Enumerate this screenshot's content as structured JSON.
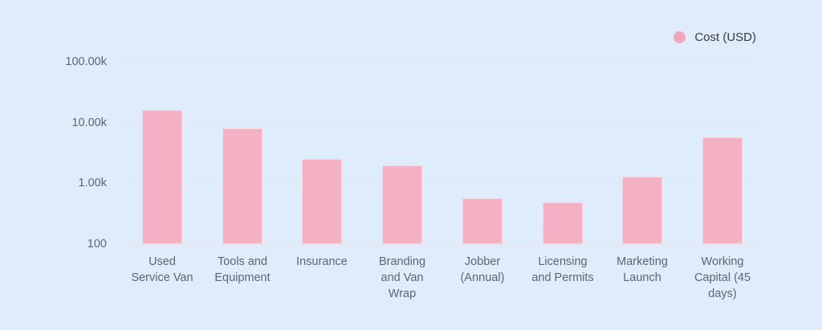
{
  "colors": {
    "background": "#dfecfb",
    "bar_fill": "#f4b1c3",
    "legend_dot": "#f2a6bc",
    "gridline": "#e2e5e9",
    "axis_text": "#5d6670",
    "legend_text": "#383c42"
  },
  "legend": {
    "label": "Cost (USD)"
  },
  "chart_data": {
    "type": "bar",
    "title": "",
    "xlabel": "",
    "ylabel": "",
    "categories": [
      "Used\nService Van",
      "Tools and\nEquipment",
      "Insurance",
      "Branding\nand Van\nWrap",
      "Jobber\n(Annual)",
      "Licensing\nand Permits",
      "Marketing\nLaunch",
      "Working\nCapital (45\ndays)"
    ],
    "series": [
      {
        "name": "Cost (USD)",
        "values": [
          16000,
          8000,
          2500,
          2000,
          575,
          480,
          1300,
          5700
        ]
      }
    ],
    "yscale": "log",
    "ylim": [
      100,
      100000
    ],
    "yticks": [
      {
        "value": 100,
        "label": "100"
      },
      {
        "value": 1000,
        "label": "1.00k"
      },
      {
        "value": 10000,
        "label": "10.00k"
      },
      {
        "value": 100000,
        "label": "100.00k"
      }
    ],
    "grid": true,
    "legend_position": "top-right"
  }
}
